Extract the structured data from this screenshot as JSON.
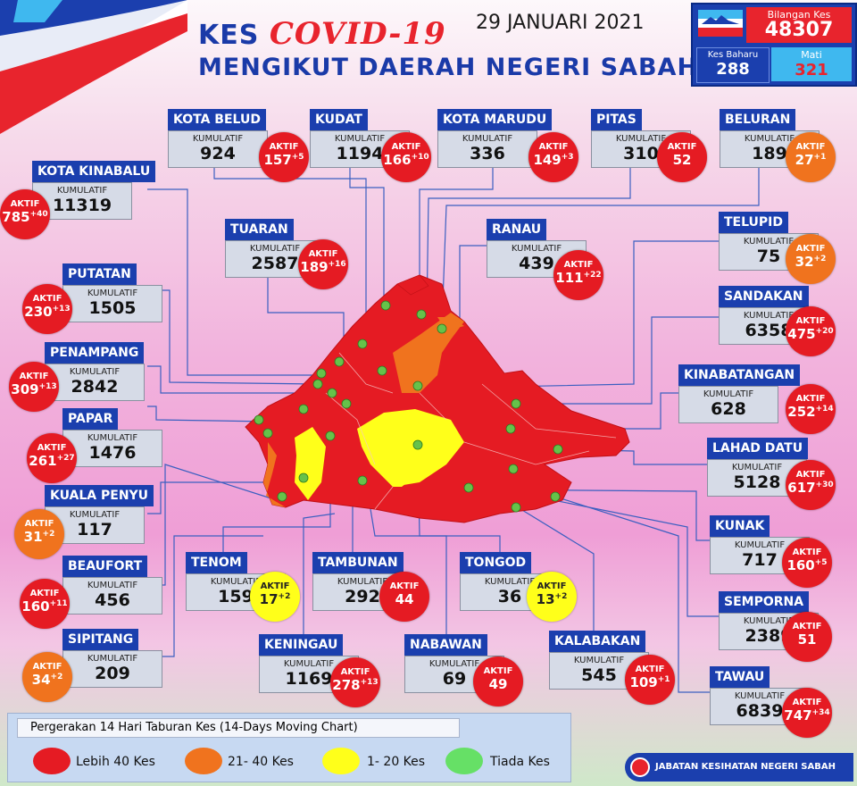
{
  "header": {
    "title_prefix": "KES",
    "title_covid": "COVID-19",
    "title_line2": "MENGIKUT DAERAH NEGERI SABAH",
    "date": "29 JANUARI 2021"
  },
  "stats": {
    "total_label": "Bilangan Kes",
    "total_value": "48307",
    "new_label": "Kes Baharu",
    "new_value": "288",
    "deaths_label": "Mati",
    "deaths_value": "321"
  },
  "kumulatif_label": "KUMULATIF",
  "aktif_label": "AKTIF",
  "colors": {
    "red": "#e51b23",
    "orange": "#f0731e",
    "yellow": "#ffff1a",
    "green": "#66e066",
    "blue": "#1b3fae"
  },
  "districts": [
    {
      "name": "KOTA BELUD",
      "kum": "924",
      "aktif": "157",
      "plus": "+5",
      "level": "red"
    },
    {
      "name": "KUDAT",
      "kum": "1194",
      "aktif": "166",
      "plus": "+10",
      "level": "red"
    },
    {
      "name": "KOTA MARUDU",
      "kum": "336",
      "aktif": "149",
      "plus": "+3",
      "level": "red"
    },
    {
      "name": "PITAS",
      "kum": "310",
      "aktif": "52",
      "plus": "",
      "level": "red"
    },
    {
      "name": "BELURAN",
      "kum": "189",
      "aktif": "27",
      "plus": "+1",
      "level": "orange"
    },
    {
      "name": "KOTA KINABALU",
      "kum": "11319",
      "aktif": "785",
      "plus": "+40",
      "level": "red"
    },
    {
      "name": "TUARAN",
      "kum": "2587",
      "aktif": "189",
      "plus": "+16",
      "level": "red"
    },
    {
      "name": "RANAU",
      "kum": "439",
      "aktif": "111",
      "plus": "+22",
      "level": "red"
    },
    {
      "name": "TELUPID",
      "kum": "75",
      "aktif": "32",
      "plus": "+2",
      "level": "orange"
    },
    {
      "name": "PUTATAN",
      "kum": "1505",
      "aktif": "230",
      "plus": "+13",
      "level": "red"
    },
    {
      "name": "SANDAKAN",
      "kum": "6358",
      "aktif": "475",
      "plus": "+20",
      "level": "red"
    },
    {
      "name": "PENAMPANG",
      "kum": "2842",
      "aktif": "309",
      "plus": "+13",
      "level": "red"
    },
    {
      "name": "KINABATANGAN",
      "kum": "628",
      "aktif": "252",
      "plus": "+14",
      "level": "red"
    },
    {
      "name": "PAPAR",
      "kum": "1476",
      "aktif": "261",
      "plus": "+27",
      "level": "red"
    },
    {
      "name": "LAHAD DATU",
      "kum": "5128",
      "aktif": "617",
      "plus": "+30",
      "level": "red"
    },
    {
      "name": "KUALA PENYU",
      "kum": "117",
      "aktif": "31",
      "plus": "+2",
      "level": "orange"
    },
    {
      "name": "KUNAK",
      "kum": "717",
      "aktif": "160",
      "plus": "+5",
      "level": "red"
    },
    {
      "name": "BEAUFORT",
      "kum": "456",
      "aktif": "160",
      "plus": "+11",
      "level": "red"
    },
    {
      "name": "TENOM",
      "kum": "159",
      "aktif": "17",
      "plus": "+2",
      "level": "yellow"
    },
    {
      "name": "TAMBUNAN",
      "kum": "292",
      "aktif": "44",
      "plus": "",
      "level": "red"
    },
    {
      "name": "TONGOD",
      "kum": "36",
      "aktif": "13",
      "plus": "+2",
      "level": "yellow"
    },
    {
      "name": "SEMPORNA",
      "kum": "2389",
      "aktif": "51",
      "plus": "",
      "level": "red"
    },
    {
      "name": "SIPITANG",
      "kum": "209",
      "aktif": "34",
      "plus": "+2",
      "level": "orange"
    },
    {
      "name": "KENINGAU",
      "kum": "1169",
      "aktif": "278",
      "plus": "+13",
      "level": "red"
    },
    {
      "name": "NABAWAN",
      "kum": "69",
      "aktif": "49",
      "plus": "",
      "level": "red"
    },
    {
      "name": "KALABAKAN",
      "kum": "545",
      "aktif": "109",
      "plus": "+1",
      "level": "red"
    },
    {
      "name": "TAWAU",
      "kum": "6839",
      "aktif": "747",
      "plus": "+34",
      "level": "red"
    }
  ],
  "legend": {
    "title": "Pergerakan 14 Hari Taburan Kes (14-Days Moving Chart)",
    "items": [
      {
        "label": "Lebih 40 Kes",
        "color": "#e51b23"
      },
      {
        "label": "21- 40 Kes",
        "color": "#f0731e"
      },
      {
        "label": "1- 20 Kes",
        "color": "#ffff1a"
      },
      {
        "label": "Tiada Kes",
        "color": "#66e066"
      }
    ]
  },
  "footer": {
    "agency": "JABATAN KESIHATAN NEGERI SABAH"
  }
}
